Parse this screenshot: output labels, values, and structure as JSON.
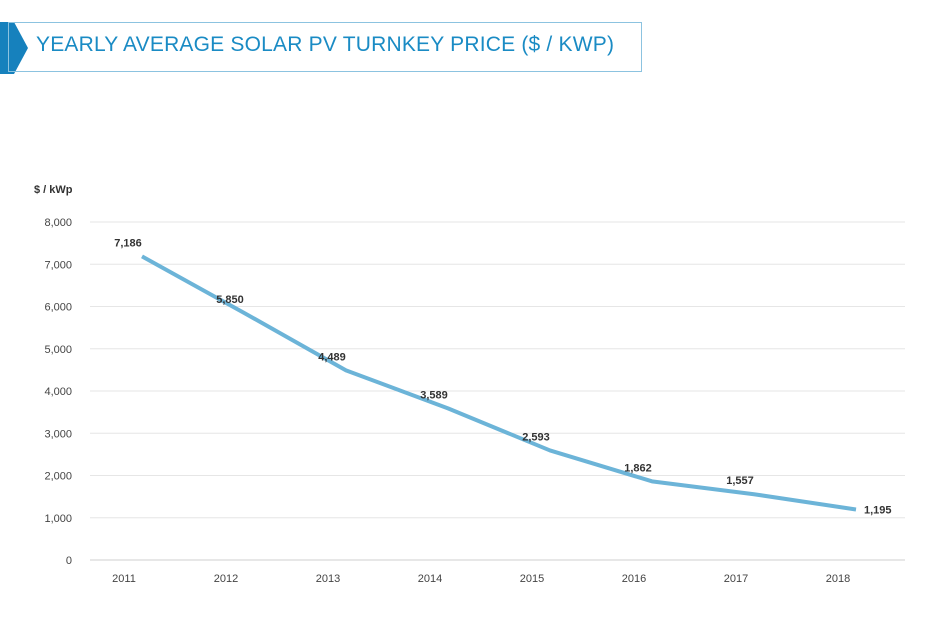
{
  "title": "YEARLY AVERAGE SOLAR PV TURNKEY PRICE ($ / KWP)",
  "colors": {
    "line": "#6cb4d8",
    "title": "#1a8bc4",
    "accent": "#1681bd",
    "grid": "#e6e6e6"
  },
  "chart_data": {
    "type": "line",
    "title": "YEARLY AVERAGE SOLAR PV TURNKEY PRICE ($ / KWP)",
    "ylabel": "$ / kWp",
    "xlabel": "",
    "categories": [
      "2011",
      "2012",
      "2013",
      "2014",
      "2015",
      "2016",
      "2017",
      "2018"
    ],
    "values": [
      7186,
      5850,
      4489,
      3589,
      2593,
      1862,
      1557,
      1195
    ],
    "data_labels": [
      "7,186",
      "5,850",
      "4,489",
      "3,589",
      "2,593",
      "1,862",
      "1,557",
      "1,195"
    ],
    "ylim": [
      0,
      8000
    ],
    "yticks": [
      "0",
      "1,000",
      "2,000",
      "3,000",
      "4,000",
      "5,000",
      "6,000",
      "7,000",
      "8,000"
    ],
    "grid": true,
    "legend": "none"
  }
}
